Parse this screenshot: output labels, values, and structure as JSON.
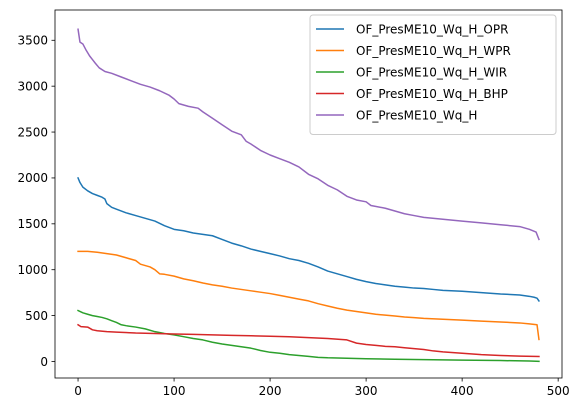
{
  "chart_data": {
    "type": "line",
    "title": "",
    "xlabel": "",
    "ylabel": "",
    "xlim": [
      -24,
      504
    ],
    "ylim": [
      -180,
      3830
    ],
    "xticks": [
      0,
      100,
      200,
      300,
      400,
      500
    ],
    "yticks": [
      0,
      500,
      1000,
      1500,
      2000,
      2500,
      3000,
      3500
    ],
    "grid": false,
    "legend_position": "top-right",
    "series": [
      {
        "name": "OF_PresME10_Wq_H_OPR",
        "color": "#1f77b4",
        "points": [
          [
            0,
            2000
          ],
          [
            2,
            1950
          ],
          [
            5,
            1900
          ],
          [
            10,
            1860
          ],
          [
            15,
            1830
          ],
          [
            20,
            1810
          ],
          [
            25,
            1790
          ],
          [
            28,
            1770
          ],
          [
            30,
            1720
          ],
          [
            35,
            1680
          ],
          [
            40,
            1660
          ],
          [
            50,
            1620
          ],
          [
            60,
            1590
          ],
          [
            70,
            1560
          ],
          [
            80,
            1530
          ],
          [
            90,
            1480
          ],
          [
            100,
            1440
          ],
          [
            110,
            1425
          ],
          [
            120,
            1400
          ],
          [
            130,
            1385
          ],
          [
            140,
            1370
          ],
          [
            150,
            1330
          ],
          [
            160,
            1290
          ],
          [
            170,
            1260
          ],
          [
            180,
            1225
          ],
          [
            190,
            1200
          ],
          [
            200,
            1175
          ],
          [
            210,
            1150
          ],
          [
            220,
            1120
          ],
          [
            230,
            1100
          ],
          [
            240,
            1070
          ],
          [
            250,
            1030
          ],
          [
            260,
            985
          ],
          [
            270,
            955
          ],
          [
            280,
            925
          ],
          [
            290,
            895
          ],
          [
            300,
            870
          ],
          [
            310,
            850
          ],
          [
            320,
            835
          ],
          [
            330,
            820
          ],
          [
            340,
            810
          ],
          [
            350,
            800
          ],
          [
            360,
            795
          ],
          [
            370,
            785
          ],
          [
            380,
            775
          ],
          [
            400,
            765
          ],
          [
            420,
            750
          ],
          [
            440,
            735
          ],
          [
            460,
            725
          ],
          [
            470,
            710
          ],
          [
            475,
            700
          ],
          [
            478,
            690
          ],
          [
            480,
            660
          ]
        ]
      },
      {
        "name": "OF_PresME10_Wq_H_WPR",
        "color": "#ff7f0e",
        "points": [
          [
            0,
            1200
          ],
          [
            10,
            1200
          ],
          [
            20,
            1190
          ],
          [
            30,
            1175
          ],
          [
            40,
            1160
          ],
          [
            50,
            1130
          ],
          [
            60,
            1100
          ],
          [
            65,
            1060
          ],
          [
            70,
            1045
          ],
          [
            75,
            1030
          ],
          [
            80,
            1000
          ],
          [
            85,
            955
          ],
          [
            90,
            950
          ],
          [
            100,
            930
          ],
          [
            110,
            900
          ],
          [
            120,
            880
          ],
          [
            130,
            855
          ],
          [
            140,
            835
          ],
          [
            150,
            820
          ],
          [
            160,
            800
          ],
          [
            170,
            785
          ],
          [
            180,
            770
          ],
          [
            190,
            755
          ],
          [
            200,
            740
          ],
          [
            210,
            720
          ],
          [
            220,
            700
          ],
          [
            230,
            680
          ],
          [
            240,
            660
          ],
          [
            250,
            630
          ],
          [
            260,
            605
          ],
          [
            270,
            580
          ],
          [
            280,
            560
          ],
          [
            290,
            545
          ],
          [
            300,
            530
          ],
          [
            310,
            515
          ],
          [
            320,
            505
          ],
          [
            330,
            495
          ],
          [
            340,
            485
          ],
          [
            350,
            478
          ],
          [
            360,
            470
          ],
          [
            380,
            460
          ],
          [
            400,
            450
          ],
          [
            420,
            440
          ],
          [
            440,
            430
          ],
          [
            460,
            420
          ],
          [
            470,
            410
          ],
          [
            478,
            400
          ],
          [
            480,
            240
          ]
        ]
      },
      {
        "name": "OF_PresME10_Wq_H_WIR",
        "color": "#2ca02c",
        "points": [
          [
            0,
            555
          ],
          [
            5,
            530
          ],
          [
            10,
            515
          ],
          [
            15,
            500
          ],
          [
            20,
            490
          ],
          [
            25,
            480
          ],
          [
            30,
            465
          ],
          [
            35,
            445
          ],
          [
            40,
            425
          ],
          [
            45,
            400
          ],
          [
            50,
            390
          ],
          [
            60,
            375
          ],
          [
            70,
            355
          ],
          [
            80,
            325
          ],
          [
            90,
            305
          ],
          [
            100,
            290
          ],
          [
            110,
            270
          ],
          [
            120,
            250
          ],
          [
            130,
            235
          ],
          [
            140,
            210
          ],
          [
            150,
            190
          ],
          [
            160,
            175
          ],
          [
            170,
            160
          ],
          [
            180,
            145
          ],
          [
            190,
            120
          ],
          [
            200,
            100
          ],
          [
            210,
            90
          ],
          [
            220,
            75
          ],
          [
            230,
            65
          ],
          [
            240,
            55
          ],
          [
            250,
            45
          ],
          [
            260,
            40
          ],
          [
            280,
            35
          ],
          [
            300,
            30
          ],
          [
            330,
            25
          ],
          [
            360,
            20
          ],
          [
            400,
            15
          ],
          [
            440,
            10
          ],
          [
            470,
            5
          ],
          [
            480,
            2
          ]
        ]
      },
      {
        "name": "OF_PresME10_Wq_H_BHP",
        "color": "#d62728",
        "points": [
          [
            0,
            400
          ],
          [
            3,
            380
          ],
          [
            10,
            375
          ],
          [
            15,
            345
          ],
          [
            20,
            335
          ],
          [
            30,
            325
          ],
          [
            40,
            320
          ],
          [
            60,
            310
          ],
          [
            80,
            305
          ],
          [
            100,
            300
          ],
          [
            120,
            295
          ],
          [
            140,
            290
          ],
          [
            160,
            285
          ],
          [
            180,
            280
          ],
          [
            200,
            275
          ],
          [
            220,
            270
          ],
          [
            240,
            260
          ],
          [
            260,
            250
          ],
          [
            280,
            235
          ],
          [
            290,
            200
          ],
          [
            300,
            185
          ],
          [
            310,
            175
          ],
          [
            320,
            165
          ],
          [
            330,
            160
          ],
          [
            340,
            150
          ],
          [
            350,
            140
          ],
          [
            360,
            130
          ],
          [
            370,
            115
          ],
          [
            380,
            105
          ],
          [
            400,
            90
          ],
          [
            420,
            75
          ],
          [
            440,
            65
          ],
          [
            460,
            58
          ],
          [
            480,
            55
          ]
        ]
      },
      {
        "name": "OF_PresME10_Wq_H",
        "color": "#9467bd",
        "points": [
          [
            0,
            3620
          ],
          [
            2,
            3480
          ],
          [
            5,
            3460
          ],
          [
            8,
            3400
          ],
          [
            12,
            3330
          ],
          [
            15,
            3290
          ],
          [
            18,
            3250
          ],
          [
            22,
            3200
          ],
          [
            28,
            3160
          ],
          [
            35,
            3140
          ],
          [
            45,
            3100
          ],
          [
            55,
            3060
          ],
          [
            65,
            3020
          ],
          [
            75,
            2990
          ],
          [
            85,
            2950
          ],
          [
            95,
            2900
          ],
          [
            100,
            2860
          ],
          [
            105,
            2810
          ],
          [
            115,
            2780
          ],
          [
            125,
            2760
          ],
          [
            130,
            2720
          ],
          [
            140,
            2650
          ],
          [
            150,
            2580
          ],
          [
            160,
            2510
          ],
          [
            170,
            2470
          ],
          [
            175,
            2400
          ],
          [
            180,
            2370
          ],
          [
            190,
            2300
          ],
          [
            200,
            2250
          ],
          [
            210,
            2210
          ],
          [
            220,
            2170
          ],
          [
            230,
            2120
          ],
          [
            240,
            2040
          ],
          [
            250,
            1990
          ],
          [
            260,
            1920
          ],
          [
            270,
            1870
          ],
          [
            280,
            1800
          ],
          [
            290,
            1760
          ],
          [
            300,
            1740
          ],
          [
            305,
            1700
          ],
          [
            320,
            1670
          ],
          [
            330,
            1640
          ],
          [
            340,
            1610
          ],
          [
            350,
            1590
          ],
          [
            360,
            1570
          ],
          [
            380,
            1550
          ],
          [
            400,
            1530
          ],
          [
            420,
            1510
          ],
          [
            440,
            1490
          ],
          [
            460,
            1470
          ],
          [
            470,
            1440
          ],
          [
            477,
            1410
          ],
          [
            480,
            1330
          ]
        ]
      }
    ]
  }
}
